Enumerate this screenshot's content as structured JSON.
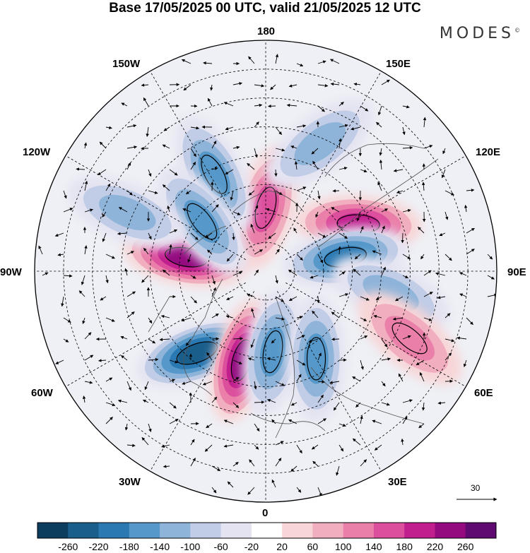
{
  "title": "Base 17/05/2025 00 UTC, valid 21/05/2025 12 UTC",
  "brand": "MODES",
  "brand_mark": "©",
  "longitude_labels": {
    "lon_180": "180",
    "lon_150E": "150E",
    "lon_120E": "120E",
    "lon_90E": "90E",
    "lon_60E": "60E",
    "lon_30E": "30E",
    "lon_0": "0",
    "lon_30W": "30W",
    "lon_60W": "60W",
    "lon_90W": "90W",
    "lon_120W": "120W",
    "lon_150W": "150W"
  },
  "vector_scale_label": "30",
  "colorbar": {
    "colors": [
      "#0d3d5e",
      "#1a5e8c",
      "#2b79b2",
      "#5598c9",
      "#8fb4d9",
      "#c1cce6",
      "#e4e3f1",
      "#ffffff",
      "#f8d6d7",
      "#f1aebf",
      "#ea80aa",
      "#dc4f9d",
      "#c21f8e",
      "#930b7f",
      "#5e0a70"
    ],
    "labels": [
      "-260",
      "-220",
      "-180",
      "-140",
      "-100",
      "-60",
      "-20",
      "20",
      "60",
      "100",
      "140",
      "180",
      "220",
      "260"
    ]
  },
  "anomaly_centers": [
    {
      "lon": -100,
      "lat": 62,
      "value": 250
    },
    {
      "lon": 180,
      "lat": 68,
      "value": 160
    },
    {
      "lon": 117,
      "lat": 54,
      "value": 200
    },
    {
      "lon": 100,
      "lat": 62,
      "value": -200
    },
    {
      "lon": 80,
      "lat": 46,
      "value": -120
    },
    {
      "lon": -40,
      "lat": 53,
      "value": -230
    },
    {
      "lon": -15,
      "lat": 58,
      "value": 220
    },
    {
      "lon": 5,
      "lat": 62,
      "value": -150
    },
    {
      "lon": 30,
      "lat": 55,
      "value": -140
    },
    {
      "lon": -152,
      "lat": 52,
      "value": -150
    },
    {
      "lon": -128,
      "lat": 62,
      "value": -140
    },
    {
      "lon": 157,
      "lat": 42,
      "value": -110
    },
    {
      "lon": -113,
      "lat": 38,
      "value": -110
    },
    {
      "lon": 65,
      "lat": 35,
      "value": 130
    }
  ]
}
